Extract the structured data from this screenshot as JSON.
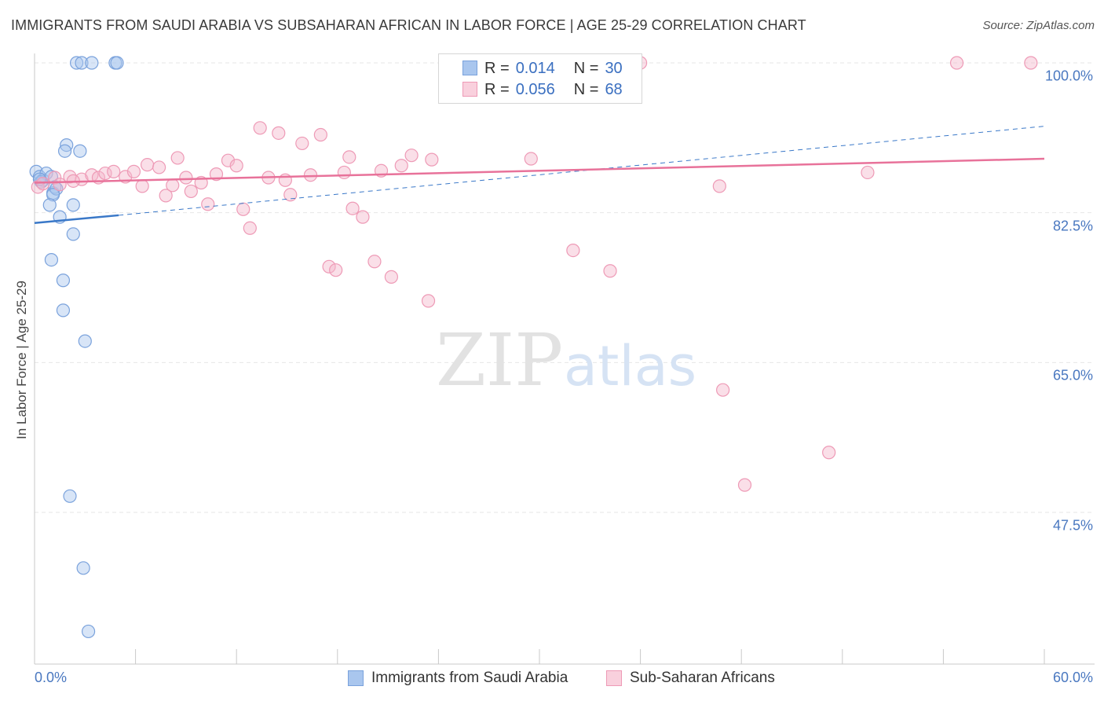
{
  "title": "IMMIGRANTS FROM SAUDI ARABIA VS SUBSAHARAN AFRICAN IN LABOR FORCE | AGE 25-29 CORRELATION CHART",
  "source": "Source: ZipAtlas.com",
  "watermark": {
    "zip": "ZIP",
    "atlas": "atlas"
  },
  "stats": [
    {
      "r_label": "R =",
      "r_value": "0.014",
      "n_label": "N =",
      "n_value": "30"
    },
    {
      "r_label": "R =",
      "r_value": "0.056",
      "n_label": "N =",
      "n_value": "68"
    }
  ],
  "colors": {
    "blue_fill": "#a9c6ee",
    "blue_stroke": "#7aa2dc",
    "blue_line": "#3a78c8",
    "pink_fill": "#f5b8cc",
    "pink_stroke": "#ee9ab6",
    "pink_line": "#e8729a",
    "tick_text": "#4a78c0",
    "grid": "#e6e6e6"
  },
  "chart_data": {
    "type": "scatter",
    "title": "IMMIGRANTS FROM SAUDI ARABIA VS SUBSAHARAN AFRICAN IN LABOR FORCE | AGE 25-29 CORRELATION CHART",
    "xlabel": "",
    "ylabel": "In Labor Force | Age 25-29",
    "xlim": [
      0,
      60
    ],
    "ylim": [
      31.5,
      102
    ],
    "x_tick_labels": [
      "0.0%",
      "60.0%"
    ],
    "y_ticks": [
      {
        "value": 100,
        "label": "100.0%"
      },
      {
        "value": 82.5,
        "label": "82.5%"
      },
      {
        "value": 65,
        "label": "65.0%"
      },
      {
        "value": 47.5,
        "label": "47.5%"
      }
    ],
    "grid": true,
    "legend_position": "bottom",
    "series": [
      {
        "name": "Immigrants from Saudi Arabia",
        "color": "blue",
        "points": [
          [
            2.5,
            100
          ],
          [
            2.8,
            100
          ],
          [
            3.4,
            100
          ],
          [
            4.8,
            100
          ],
          [
            4.9,
            100
          ],
          [
            0.1,
            87.3
          ],
          [
            0.3,
            86.7
          ],
          [
            0.5,
            86.3
          ],
          [
            0.7,
            87.1
          ],
          [
            1.0,
            86.7
          ],
          [
            0.4,
            86.1
          ],
          [
            1.1,
            84.8
          ],
          [
            1.2,
            85.5
          ],
          [
            1.3,
            85.3
          ],
          [
            1.1,
            84.6
          ],
          [
            1.9,
            90.4
          ],
          [
            1.8,
            89.7
          ],
          [
            2.7,
            89.7
          ],
          [
            0.9,
            83.4
          ],
          [
            2.3,
            83.4
          ],
          [
            1.5,
            82.0
          ],
          [
            2.3,
            80.0
          ],
          [
            1.0,
            77.0
          ],
          [
            1.7,
            74.6
          ],
          [
            1.7,
            71.1
          ],
          [
            3.0,
            67.5
          ],
          [
            2.1,
            49.4
          ],
          [
            2.9,
            41.0
          ],
          [
            3.2,
            33.6
          ],
          [
            0.3,
            86.4
          ]
        ]
      },
      {
        "name": "Sub-Saharan Africans",
        "color": "pink",
        "points": [
          [
            0.2,
            85.5
          ],
          [
            1.2,
            86.6
          ],
          [
            1.5,
            85.8
          ],
          [
            2.1,
            86.7
          ],
          [
            2.8,
            86.4
          ],
          [
            3.4,
            86.9
          ],
          [
            3.8,
            86.6
          ],
          [
            4.2,
            87.1
          ],
          [
            4.7,
            87.3
          ],
          [
            5.4,
            86.7
          ],
          [
            5.9,
            87.3
          ],
          [
            6.4,
            85.6
          ],
          [
            6.7,
            88.1
          ],
          [
            7.4,
            87.8
          ],
          [
            7.8,
            84.5
          ],
          [
            8.2,
            85.7
          ],
          [
            8.5,
            88.9
          ],
          [
            9.3,
            85.0
          ],
          [
            9.9,
            86.0
          ],
          [
            10.3,
            83.5
          ],
          [
            10.8,
            87.0
          ],
          [
            11.5,
            88.6
          ],
          [
            12.0,
            88.0
          ],
          [
            12.4,
            82.9
          ],
          [
            12.8,
            80.7
          ],
          [
            13.4,
            92.4
          ],
          [
            13.9,
            86.6
          ],
          [
            14.5,
            91.8
          ],
          [
            14.9,
            86.3
          ],
          [
            15.2,
            84.6
          ],
          [
            15.9,
            90.6
          ],
          [
            16.4,
            86.9
          ],
          [
            17.0,
            91.6
          ],
          [
            17.5,
            76.2
          ],
          [
            17.9,
            75.8
          ],
          [
            18.4,
            87.2
          ],
          [
            18.7,
            89.0
          ],
          [
            18.9,
            83.0
          ],
          [
            19.5,
            82.0
          ],
          [
            20.2,
            76.8
          ],
          [
            20.6,
            87.4
          ],
          [
            21.2,
            75.0
          ],
          [
            21.8,
            88.0
          ],
          [
            22.4,
            89.2
          ],
          [
            23.6,
            88.7
          ],
          [
            23.4,
            72.2
          ],
          [
            24.5,
            100
          ],
          [
            26.2,
            100
          ],
          [
            27.3,
            96.6
          ],
          [
            28.7,
            100
          ],
          [
            29.5,
            88.8
          ],
          [
            30.3,
            100
          ],
          [
            32.5,
            100
          ],
          [
            34.4,
            100
          ],
          [
            35.5,
            100
          ],
          [
            32.0,
            78.1
          ],
          [
            34.2,
            75.7
          ],
          [
            36.0,
            100
          ],
          [
            40.7,
            85.6
          ],
          [
            40.9,
            61.8
          ],
          [
            42.2,
            50.7
          ],
          [
            47.2,
            54.5
          ],
          [
            49.5,
            87.2
          ],
          [
            54.8,
            100
          ],
          [
            59.2,
            100
          ],
          [
            0.5,
            85.9
          ],
          [
            2.3,
            86.2
          ],
          [
            9.0,
            86.6
          ]
        ]
      }
    ],
    "trend_lines": [
      {
        "series": "Immigrants from Saudi Arabia",
        "style": "solid",
        "from": [
          0,
          81.3
        ],
        "to": [
          5,
          82.2
        ]
      },
      {
        "series": "Immigrants from Saudi Arabia",
        "style": "dashed",
        "from": [
          5,
          82.2
        ],
        "to": [
          60,
          92.6
        ]
      },
      {
        "series": "Sub-Saharan Africans",
        "style": "solid",
        "from": [
          0,
          86.0
        ],
        "to": [
          60,
          88.8
        ]
      }
    ]
  },
  "legend": {
    "items": [
      {
        "label": "Immigrants from Saudi Arabia"
      },
      {
        "label": "Sub-Saharan Africans"
      }
    ]
  }
}
